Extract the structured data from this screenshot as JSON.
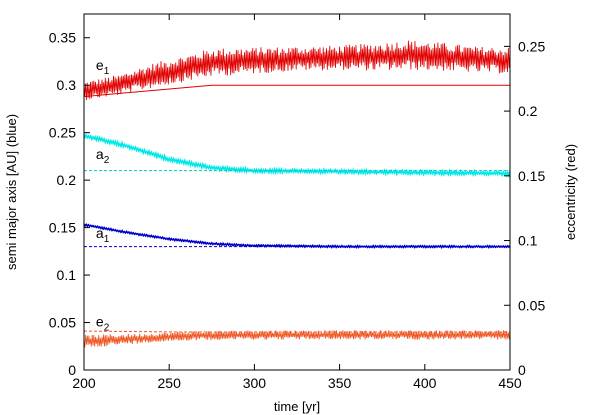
{
  "chart_data": {
    "type": "line",
    "xlabel": "time [yr]",
    "ylabel_left": "semi major axis [AU] (blue)",
    "ylabel_right": "eccentricity (red)",
    "xlim": [
      200,
      450
    ],
    "ylim_left": [
      0,
      0.375
    ],
    "ylim_right": [
      0,
      0.275
    ],
    "x_ticks": [
      "200",
      "250",
      "300",
      "350",
      "400",
      "450"
    ],
    "y_left_ticks": [
      "0",
      "0.05",
      "0.1",
      "0.15",
      "0.2",
      "0.25",
      "0.3",
      "0.35"
    ],
    "y_right_ticks": [
      "0",
      "0.05",
      "0.1",
      "0.15",
      "0.2",
      "0.25"
    ],
    "grid": false,
    "annotations": [
      {
        "base": "e",
        "sub": "1",
        "x": 207,
        "y": 0.316
      },
      {
        "base": "a",
        "sub": "2",
        "x": 207,
        "y": 0.222
      },
      {
        "base": "a",
        "sub": "1",
        "x": 207,
        "y": 0.139
      },
      {
        "base": "e",
        "sub": "2",
        "x": 207,
        "y": 0.046
      }
    ],
    "series": [
      {
        "axis": "left",
        "color": "#e00000",
        "style": "noisy",
        "x": [
          200,
          220,
          240,
          260,
          275,
          300,
          325,
          350,
          375,
          390,
          410,
          430,
          450
        ],
        "y": [
          0.294,
          0.3,
          0.31,
          0.318,
          0.324,
          0.326,
          0.328,
          0.329,
          0.33,
          0.332,
          0.33,
          0.327,
          0.326
        ],
        "amp": [
          0.01,
          0.011,
          0.013,
          0.014,
          0.015,
          0.014,
          0.013,
          0.013,
          0.015,
          0.016,
          0.015,
          0.014,
          0.014
        ]
      },
      {
        "axis": "left",
        "color": "#e00000",
        "style": "thin",
        "x": [
          200,
          275,
          450
        ],
        "y": [
          0.288,
          0.3,
          0.3
        ]
      },
      {
        "axis": "left",
        "color": "#00e8e8",
        "style": "band",
        "x": [
          200,
          225,
          250,
          275,
          300,
          350,
          400,
          450
        ],
        "y": [
          0.247,
          0.236,
          0.222,
          0.213,
          0.21,
          0.209,
          0.208,
          0.207
        ],
        "amp": [
          0.002,
          0.002,
          0.002,
          0.002,
          0.002,
          0.002,
          0.002,
          0.002
        ]
      },
      {
        "axis": "left",
        "color": "#00c8c8",
        "style": "dashed",
        "x": [
          200,
          450
        ],
        "y": [
          0.21,
          0.21
        ]
      },
      {
        "axis": "left",
        "color": "#0000cc",
        "style": "band",
        "x": [
          200,
          225,
          250,
          275,
          300,
          350,
          400,
          450
        ],
        "y": [
          0.153,
          0.145,
          0.138,
          0.133,
          0.131,
          0.13,
          0.13,
          0.13
        ],
        "amp": [
          0.001,
          0.001,
          0.001,
          0.001,
          0.001,
          0.001,
          0.001,
          0.001
        ]
      },
      {
        "axis": "left",
        "color": "#0000cc",
        "style": "dashed",
        "x": [
          200,
          450
        ],
        "y": [
          0.13,
          0.13
        ]
      },
      {
        "axis": "left",
        "color": "#ee5522",
        "style": "noisy",
        "x": [
          200,
          220,
          240,
          260,
          300,
          350,
          400,
          450
        ],
        "y": [
          0.03,
          0.032,
          0.034,
          0.036,
          0.037,
          0.037,
          0.037,
          0.037
        ],
        "amp": [
          0.007,
          0.006,
          0.005,
          0.005,
          0.005,
          0.005,
          0.005,
          0.005
        ]
      },
      {
        "axis": "left",
        "color": "#ee5522",
        "style": "dashed",
        "x": [
          200,
          260,
          450
        ],
        "y": [
          0.041,
          0.04,
          0.04
        ]
      }
    ]
  }
}
